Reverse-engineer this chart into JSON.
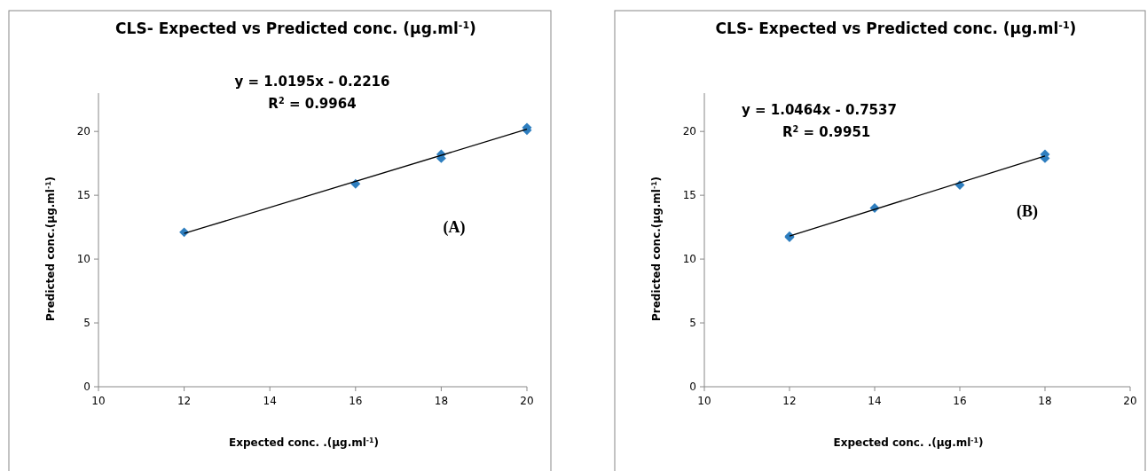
{
  "chart_data": [
    {
      "type": "scatter",
      "title": "CLS- Expected vs Predicted conc. (µg.ml$^{-1}$)",
      "xlabel": "Expected conc. .(µg.ml$^{-1}$)",
      "ylabel": "Predicted conc.(µg.ml$^{-1}$)",
      "annotations": [
        "y = 1.0195x - 0.2216",
        "R$^{2}$ = 0.9964",
        "(A)"
      ],
      "xlim": [
        10,
        20
      ],
      "xticks": [
        10,
        12,
        14,
        16,
        18,
        20
      ],
      "ylim": [
        0,
        23
      ],
      "yticks": [
        0,
        5,
        10,
        15,
        20
      ],
      "marker": "diamond",
      "grid": false,
      "series": [
        {
          "type": "scatter",
          "color": "#2e7ebf",
          "x": [
            12,
            16,
            18,
            18,
            20,
            20
          ],
          "values": [
            12.1,
            15.9,
            17.9,
            18.2,
            20.1,
            20.3
          ]
        },
        {
          "type": "line",
          "color": "#000000",
          "marker": "none",
          "x": [
            12,
            20
          ],
          "values": [
            12.01,
            20.17
          ]
        }
      ]
    },
    {
      "type": "scatter",
      "title": "CLS- Expected vs Predicted conc. (µg.ml$^{-1}$)",
      "xlabel": "Expected conc. .(µg.ml$^{-1}$)",
      "ylabel": "Predicted conc.(µg.ml$^{-1}$)",
      "annotations": [
        "y = 1.0464x - 0.7537",
        "R$^{2}$ = 0.9951",
        "(B)"
      ],
      "xlim": [
        10,
        20
      ],
      "xticks": [
        10,
        12,
        14,
        16,
        18,
        20
      ],
      "ylim": [
        0,
        23
      ],
      "yticks": [
        0,
        5,
        10,
        15,
        20
      ],
      "marker": "diamond",
      "grid": false,
      "series": [
        {
          "type": "scatter",
          "color": "#2e7ebf",
          "x": [
            12,
            12,
            14,
            16,
            18,
            18
          ],
          "values": [
            11.7,
            11.8,
            14.0,
            15.8,
            17.9,
            18.2
          ]
        },
        {
          "type": "line",
          "color": "#000000",
          "marker": "none",
          "x": [
            12,
            18
          ],
          "values": [
            11.8,
            18.08
          ]
        }
      ]
    }
  ]
}
